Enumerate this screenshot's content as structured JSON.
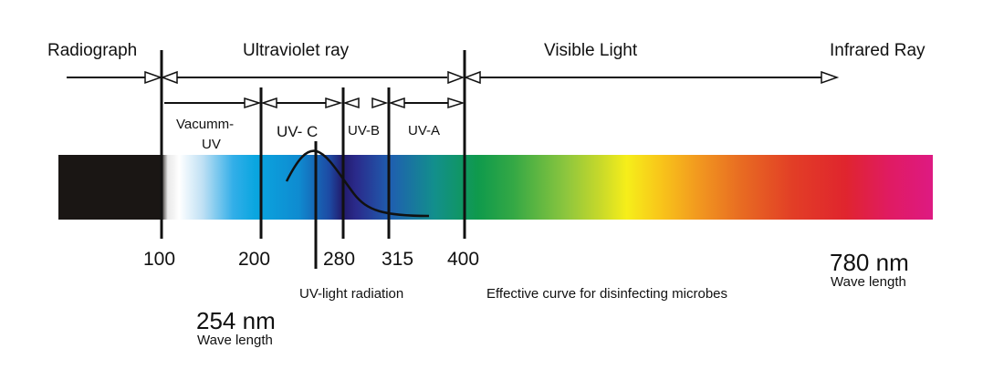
{
  "regions": {
    "radiograph": "Radiograph",
    "ultraviolet": "Ultraviolet ray",
    "visible": "Visible Light",
    "infrared": "Infrared Ray"
  },
  "uv_bands": {
    "vacuum_line1": "Vacumm-",
    "vacuum_line2": "UV",
    "uvc": "UV- C",
    "uvb": "UV-B",
    "uva": "UV-A"
  },
  "ticks": [
    "100",
    "200",
    "280",
    "315",
    "400"
  ],
  "annotations": {
    "end_wavelength": "780 nm",
    "end_wavelength_sub": "Wave length",
    "peak_wavelength": "254 nm",
    "peak_wavelength_sub": "Wave length",
    "uv_light": "UV-light radiation",
    "curve": "Effective curve for disinfecting microbes"
  },
  "colors": {
    "spectrum": [
      "#1a1614",
      "#1a1614",
      "#e8e8e8",
      "#ffffff",
      "#bfe0f4",
      "#32aee8",
      "#0aa6e0",
      "#0f8bd0",
      "#1d4aa3",
      "#221a6b",
      "#2a2a8a",
      "#1f5fb0",
      "#128f8c",
      "#0f9a4c",
      "#34a845",
      "#8cc63e",
      "#c8d92a",
      "#f6ee1a",
      "#f8c41a",
      "#f29a1f",
      "#e86c22",
      "#e23e26",
      "#e0252e",
      "#e01b62",
      "#de1a82"
    ]
  }
}
